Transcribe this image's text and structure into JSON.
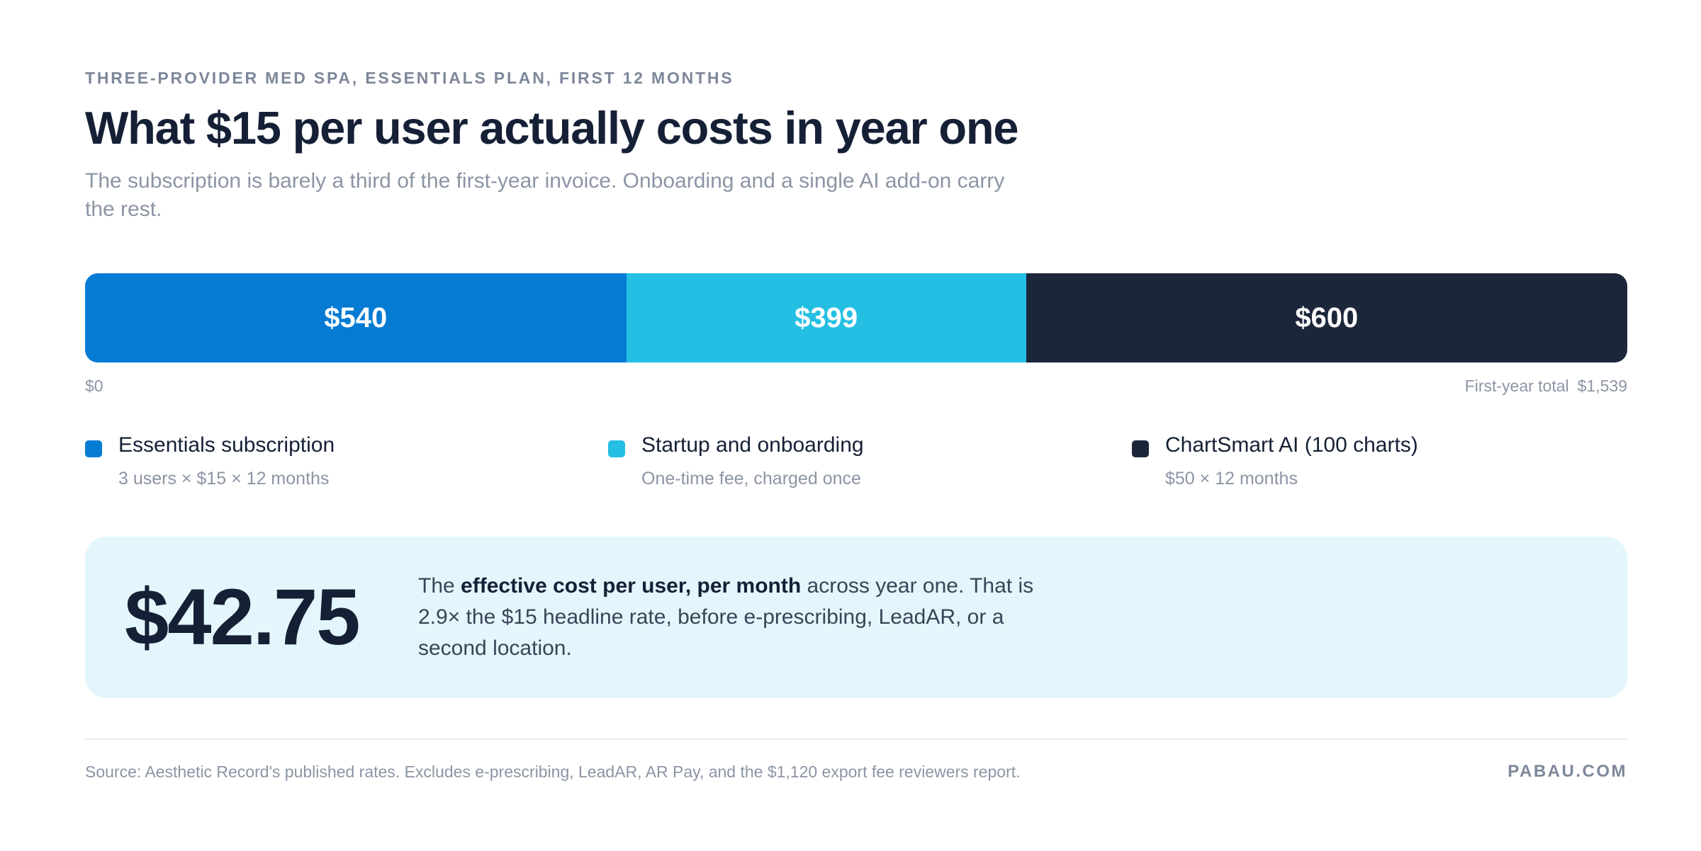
{
  "eyebrow": "THREE-PROVIDER MED SPA, ESSENTIALS PLAN, FIRST 12 MONTHS",
  "title": "What $15 per user actually costs in year one",
  "subtitle": "The subscription is barely a third of the first-year invoice. Onboarding and a single AI add-on carry the rest.",
  "chart_data": {
    "type": "bar",
    "orientation": "horizontal-stacked",
    "categories": [
      "Essentials subscription",
      "Startup and onboarding",
      "ChartSmart AI (100 charts)"
    ],
    "values": [
      540,
      399,
      600
    ],
    "value_labels": [
      "$540",
      "$399",
      "$600"
    ],
    "colors": [
      "#067bd4",
      "#25bfe3",
      "#1c263b"
    ],
    "xlim": [
      0,
      1539
    ],
    "axis_start_label": "$0",
    "axis_end_label": "First-year total",
    "axis_end_value": "$1,539",
    "legend": [
      {
        "label": "Essentials subscription",
        "note": "3 users × $15 × 12 months",
        "color": "#067bd4"
      },
      {
        "label": "Startup and onboarding",
        "note": "One-time fee, charged once",
        "color": "#25bfe3"
      },
      {
        "label": "ChartSmart AI (100 charts)",
        "note": "$50 × 12 months",
        "color": "#1c263b"
      }
    ],
    "legend_placement": "bottom"
  },
  "callout": {
    "value": "$42.75",
    "text_before": "The ",
    "text_bold": "effective cost per user, per month",
    "text_after": " across year one. That is 2.9× the $15 headline rate, before e-prescribing, LeadAR, or a second location."
  },
  "footer": {
    "source": "Source: Aesthetic Record's published rates. Excludes e-prescribing, LeadAR, AR Pay, and the $1,120 export fee reviewers report.",
    "brand": "PABAU.COM"
  }
}
